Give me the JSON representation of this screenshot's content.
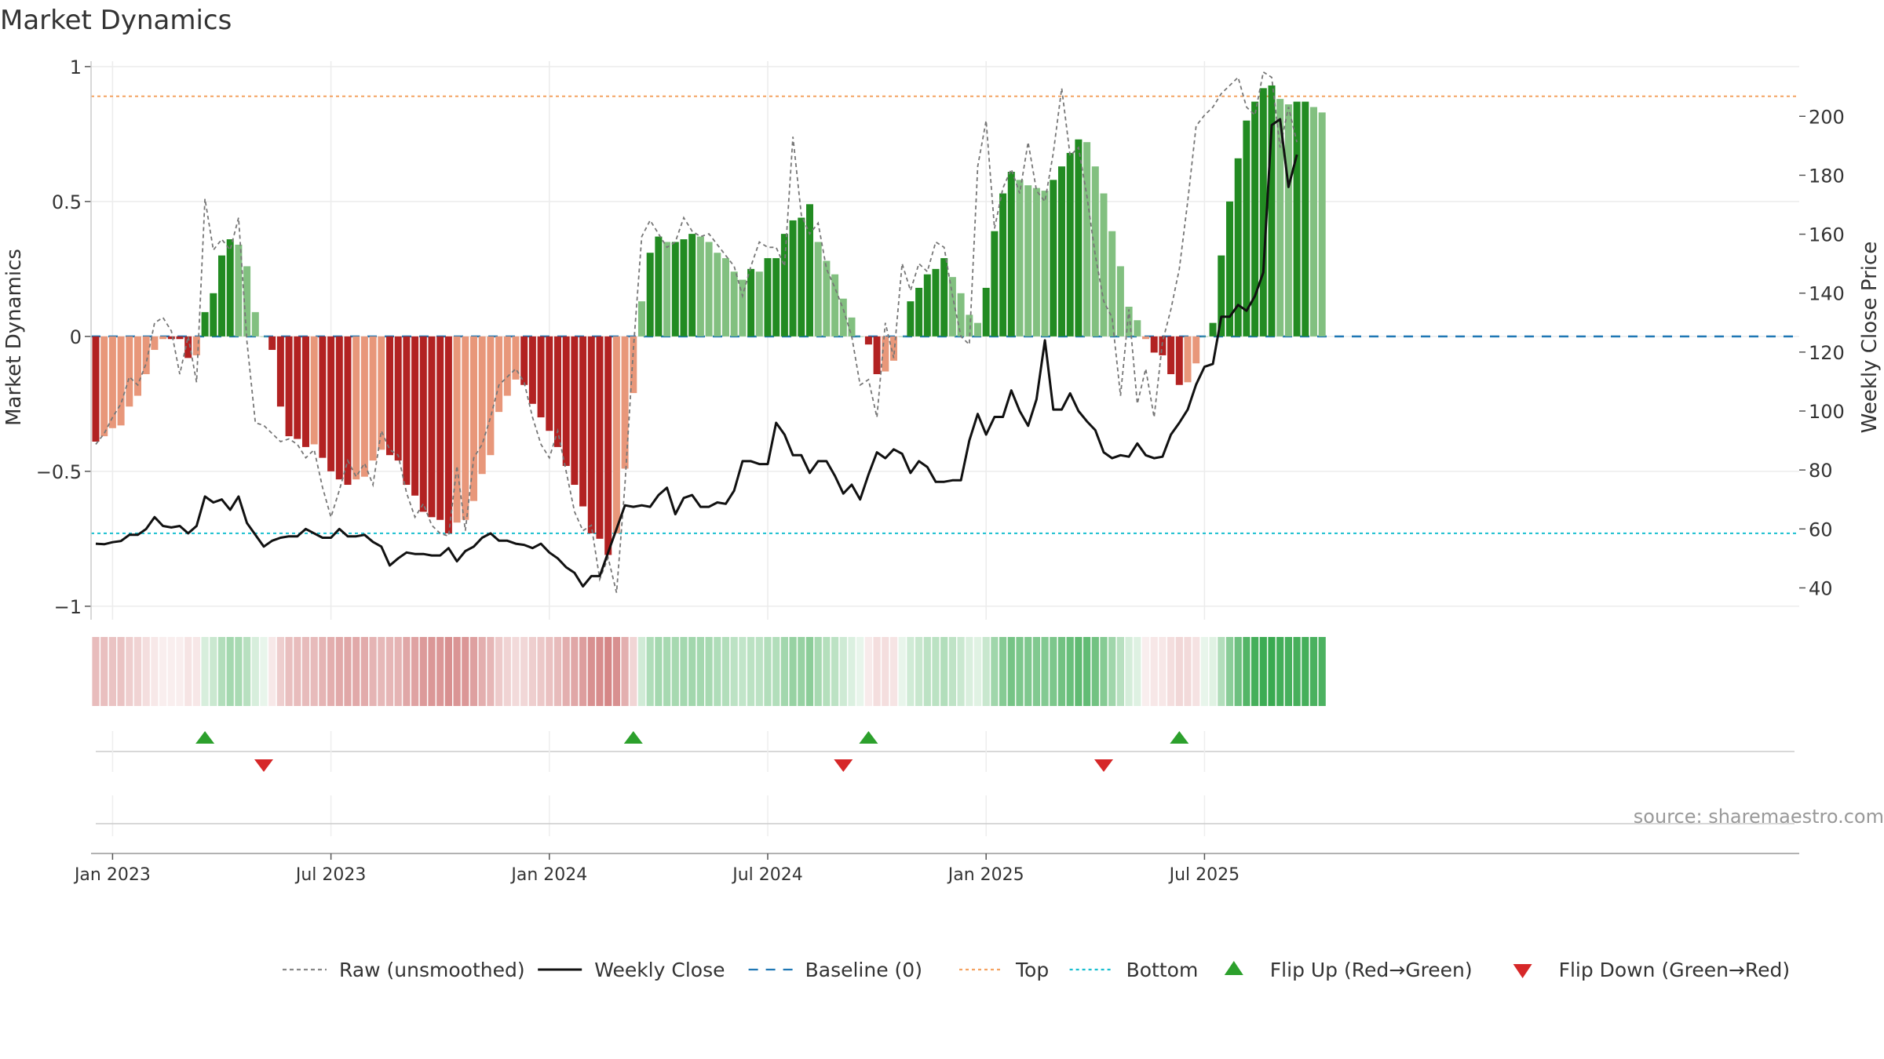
{
  "chart_data": {
    "type": "bar",
    "title": "Market Dynamics",
    "ylabel": "Market Dynamics",
    "y2label": "Weekly Close Price",
    "ylim": [
      -1.05,
      1.02
    ],
    "y2lim": [
      29.2,
      218.7
    ],
    "yticks": [
      {
        "v": 1,
        "label": "1"
      },
      {
        "v": 0.5,
        "label": "0.5"
      },
      {
        "v": 0,
        "label": "0"
      },
      {
        "v": -0.5,
        "label": "−0.5"
      },
      {
        "v": -1,
        "label": "−1"
      }
    ],
    "y2ticks": [
      40,
      60,
      80,
      100,
      120,
      140,
      160,
      180,
      200
    ],
    "xticks": [
      {
        "week": 2,
        "label": "Jan 2023"
      },
      {
        "week": 28,
        "label": "Jul 2023"
      },
      {
        "week": 54,
        "label": "Jan 2024"
      },
      {
        "week": 80,
        "label": "Jul 2024"
      },
      {
        "week": 106,
        "label": "Jan 2025"
      },
      {
        "week": 132,
        "label": "Jul 2025"
      }
    ],
    "grid": true,
    "top_line": 0.89,
    "bottom_line": -0.73,
    "baseline": 0,
    "series": [
      {
        "name": "Market Dynamics (bars)",
        "values": [
          -0.39,
          -0.37,
          -0.34,
          -0.33,
          -0.26,
          -0.22,
          -0.14,
          -0.05,
          -0.01,
          -0.01,
          -0.01,
          -0.08,
          -0.07,
          0.09,
          0.16,
          0.3,
          0.36,
          0.34,
          0.26,
          0.09,
          0.0,
          -0.05,
          -0.26,
          -0.37,
          -0.38,
          -0.41,
          -0.4,
          -0.45,
          -0.5,
          -0.53,
          -0.55,
          -0.53,
          -0.52,
          -0.46,
          -0.42,
          -0.44,
          -0.46,
          -0.55,
          -0.59,
          -0.65,
          -0.67,
          -0.68,
          -0.73,
          -0.69,
          -0.68,
          -0.61,
          -0.51,
          -0.44,
          -0.28,
          -0.22,
          -0.16,
          -0.18,
          -0.25,
          -0.3,
          -0.35,
          -0.41,
          -0.48,
          -0.55,
          -0.63,
          -0.73,
          -0.75,
          -0.81,
          -0.73,
          -0.49,
          -0.21,
          0.13,
          0.31,
          0.37,
          0.35,
          0.35,
          0.36,
          0.38,
          0.37,
          0.35,
          0.31,
          0.29,
          0.24,
          0.21,
          0.25,
          0.24,
          0.29,
          0.29,
          0.38,
          0.43,
          0.44,
          0.49,
          0.35,
          0.28,
          0.23,
          0.14,
          0.07,
          0.0,
          -0.03,
          -0.14,
          -0.13,
          -0.09,
          0.0,
          0.13,
          0.18,
          0.23,
          0.25,
          0.29,
          0.22,
          0.16,
          0.08,
          0.05,
          0.18,
          0.39,
          0.53,
          0.61,
          0.58,
          0.56,
          0.55,
          0.54,
          0.58,
          0.63,
          0.68,
          0.73,
          0.72,
          0.63,
          0.53,
          0.39,
          0.26,
          0.11,
          0.06,
          -0.01,
          -0.06,
          -0.07,
          -0.14,
          -0.18,
          -0.17,
          -0.1,
          0.0,
          0.05,
          0.3,
          0.5,
          0.66,
          0.8,
          0.87,
          0.92,
          0.93,
          0.88,
          0.86,
          0.87,
          0.87,
          0.85,
          0.83
        ]
      },
      {
        "name": "Raw (unsmoothed)",
        "values": [
          -0.4,
          -0.36,
          -0.3,
          -0.25,
          -0.15,
          -0.18,
          -0.1,
          0.05,
          0.07,
          0.02,
          -0.14,
          0.0,
          -0.17,
          0.51,
          0.32,
          0.36,
          0.32,
          0.44,
          -0.02,
          -0.32,
          -0.33,
          -0.36,
          -0.39,
          -0.38,
          -0.4,
          -0.45,
          -0.42,
          -0.56,
          -0.67,
          -0.57,
          -0.46,
          -0.52,
          -0.47,
          -0.55,
          -0.35,
          -0.42,
          -0.44,
          -0.58,
          -0.67,
          -0.62,
          -0.7,
          -0.73,
          -0.74,
          -0.48,
          -0.72,
          -0.45,
          -0.4,
          -0.3,
          -0.18,
          -0.15,
          -0.12,
          -0.17,
          -0.3,
          -0.4,
          -0.45,
          -0.35,
          -0.5,
          -0.65,
          -0.72,
          -0.7,
          -0.9,
          -0.82,
          -0.95,
          -0.55,
          -0.05,
          0.37,
          0.43,
          0.38,
          0.33,
          0.35,
          0.44,
          0.39,
          0.37,
          0.38,
          0.34,
          0.3,
          0.26,
          0.15,
          0.26,
          0.35,
          0.33,
          0.33,
          0.26,
          0.74,
          0.45,
          0.38,
          0.42,
          0.25,
          0.18,
          0.1,
          0.0,
          -0.18,
          -0.16,
          -0.3,
          0.05,
          -0.08,
          0.27,
          0.17,
          0.27,
          0.24,
          0.35,
          0.33,
          0.15,
          0.0,
          -0.03,
          0.63,
          0.8,
          0.4,
          0.55,
          0.62,
          0.53,
          0.72,
          0.54,
          0.5,
          0.68,
          0.92,
          0.67,
          0.7,
          0.52,
          0.3,
          0.13,
          0.07,
          -0.22,
          0.1,
          -0.25,
          -0.12,
          -0.3,
          -0.02,
          0.1,
          0.25,
          0.5,
          0.78,
          0.82,
          0.85,
          0.9,
          0.93,
          0.96,
          0.85,
          0.82,
          0.98,
          0.96,
          0.7,
          0.85,
          0.72
        ]
      },
      {
        "name": "Weekly Close",
        "axis": "right",
        "values": [
          55,
          54.8,
          55.5,
          55.9,
          58,
          58,
          60,
          64,
          61,
          60.5,
          61,
          58.5,
          61,
          71,
          69,
          70,
          66.5,
          71,
          62,
          58,
          54,
          56,
          57,
          57.5,
          57.5,
          60,
          58.5,
          57,
          57,
          60,
          57.5,
          57.5,
          58,
          55.6,
          54,
          47.6,
          50,
          52,
          51.5,
          51.5,
          51,
          51,
          53.5,
          49,
          52.5,
          54,
          57,
          58.5,
          56,
          56,
          55,
          54.6,
          53.5,
          55,
          52,
          50,
          47,
          45.1,
          40.5,
          44,
          44,
          52,
          60,
          68,
          67.5,
          68,
          67.5,
          71.5,
          74,
          65,
          70.5,
          71.5,
          67.5,
          67.5,
          69,
          68.5,
          73,
          83,
          83,
          82,
          82,
          96,
          92,
          85,
          85,
          79,
          83,
          83,
          78,
          72,
          75,
          70,
          78.5,
          86,
          84,
          87,
          85.5,
          79,
          83,
          81,
          76,
          76,
          76.5,
          76.5,
          90,
          99,
          92,
          98,
          98,
          107,
          100,
          95,
          104,
          124,
          100.5,
          100.5,
          106,
          100,
          96.5,
          93.5,
          86,
          84,
          85,
          84.5,
          89,
          85,
          84,
          84.5,
          92,
          96,
          100.5,
          109,
          115,
          116,
          132,
          132,
          136,
          134,
          139,
          147,
          197,
          199,
          176,
          187
        ]
      }
    ],
    "color_strip": "Regime intensity: one cell per week, red = negative, green = positive",
    "flip_up_weeks": [
      13,
      64,
      92,
      129
    ],
    "flip_down_weeks": [
      20,
      89,
      120
    ],
    "legend": [
      {
        "label": "Raw (unsmoothed)",
        "style": "dashed",
        "color": "#888888"
      },
      {
        "label": "Weekly Close",
        "style": "solid",
        "color": "#111111"
      },
      {
        "label": "Baseline (0)",
        "style": "dash",
        "color": "#1f77b4"
      },
      {
        "label": "Top",
        "style": "dotted",
        "color": "#f4a261"
      },
      {
        "label": "Bottom",
        "style": "dotted",
        "color": "#17becf"
      },
      {
        "label": "Flip Up (Red→Green)",
        "style": "triangle-up",
        "color": "#2ca02c"
      },
      {
        "label": "Flip Down (Green→Red)",
        "style": "triangle-down",
        "color": "#d62728"
      }
    ],
    "colors": {
      "pos_strong": "#228b22",
      "pos_weak": "#82c080",
      "neg_strong": "#b22222",
      "neg_weak": "#e8977a",
      "flip_up": "#2ca02c",
      "flip_down": "#d62728"
    }
  },
  "watermark": "source: sharemaestro.com"
}
